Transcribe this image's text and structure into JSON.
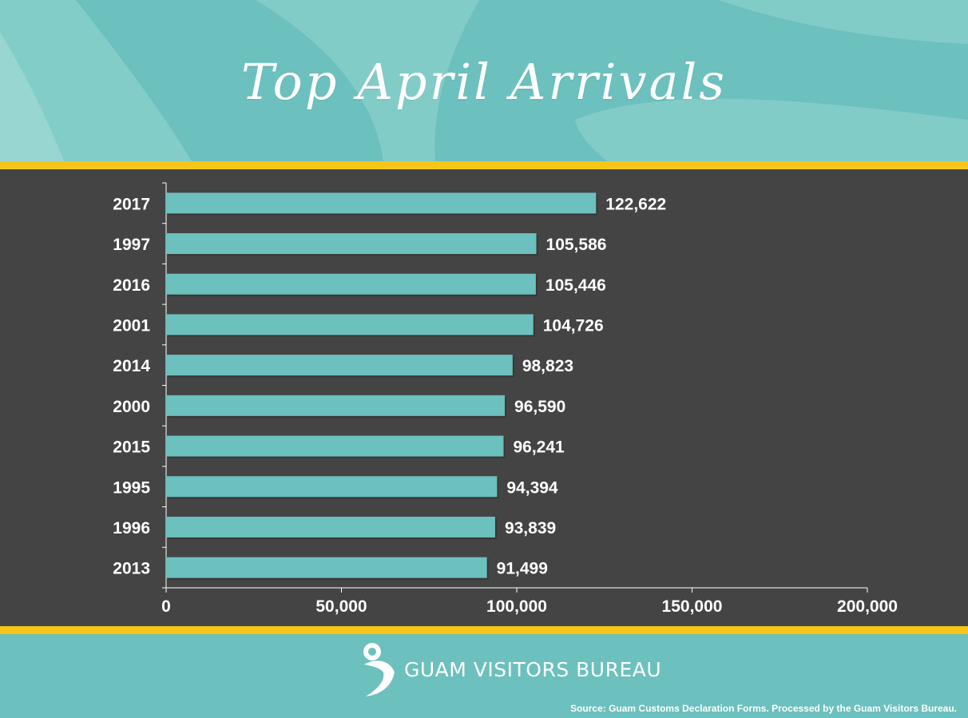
{
  "header": {
    "title": "Top April Arrivals"
  },
  "colors": {
    "teal": "#6cc0be",
    "dark_background": "#444444",
    "accent_yellow": "#f5c518",
    "text_white": "#ffffff"
  },
  "chart_data": {
    "type": "bar",
    "orientation": "horizontal",
    "title": "Top April Arrivals",
    "categories": [
      "2017",
      "1997",
      "2016",
      "2001",
      "2014",
      "2000",
      "2015",
      "1995",
      "1996",
      "2013"
    ],
    "values": [
      122622,
      105586,
      105446,
      104726,
      98823,
      96590,
      96241,
      94394,
      93839,
      91499
    ],
    "value_labels": [
      "122,622",
      "105,586",
      "105,446",
      "104,726",
      "98,823",
      "96,590",
      "96,241",
      "94,394",
      "93,839",
      "91,499"
    ],
    "xlim": [
      0,
      200000
    ],
    "x_ticks": [
      0,
      50000,
      100000,
      150000,
      200000
    ],
    "x_tick_labels": [
      "0",
      "50,000",
      "100,000",
      "150,000",
      "200,000"
    ],
    "bar_color": "#6cc0be",
    "grid": false,
    "legend": "none"
  },
  "footer": {
    "logo_text": "GUAM VISITORS BUREAU",
    "logo_icon": "guam-visitors-bureau-logo-icon",
    "source": "Source: Guam Customs Declaration Forms. Processed by the Guam Visitors Bureau."
  }
}
